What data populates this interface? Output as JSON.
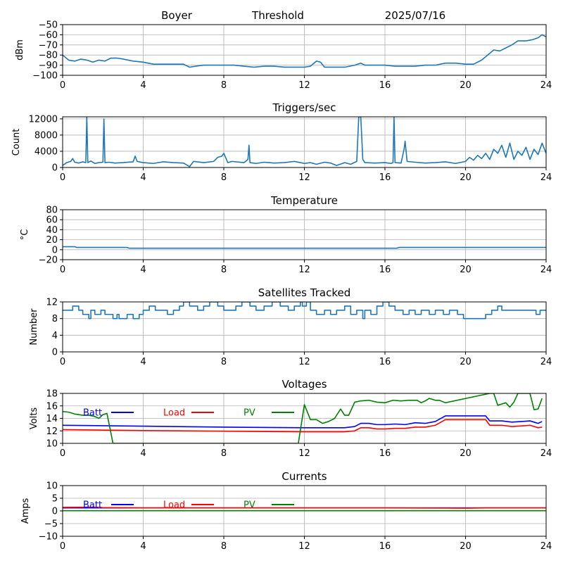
{
  "header": {
    "site": "Boyer",
    "mode": "Threshold",
    "date": "2025/07/16"
  },
  "colors": {
    "series": "#1f77b4",
    "batt": "#0000ff",
    "load": "#ff0000",
    "pv": "#008000",
    "grid": "#b0b0b0"
  },
  "chart_data": [
    {
      "id": "threshold",
      "type": "line",
      "title": "",
      "ylabel": "dBm",
      "xlim": [
        0,
        24
      ],
      "ylim": [
        -100,
        -50
      ],
      "xticks": [
        0,
        4,
        8,
        12,
        16,
        20,
        24
      ],
      "yticks": [
        -100,
        -90,
        -80,
        -70,
        -60,
        -50
      ],
      "grid": true,
      "series": [
        {
          "name": "",
          "color": "#1f77b4",
          "x": [
            0,
            0.3,
            0.6,
            0.9,
            1.2,
            1.5,
            1.8,
            2.1,
            2.4,
            2.7,
            3.0,
            3.5,
            4.0,
            4.5,
            5.0,
            5.5,
            6.0,
            6.3,
            6.6,
            7.0,
            7.5,
            8.0,
            8.5,
            9.0,
            9.5,
            10.0,
            10.5,
            11.0,
            11.5,
            12.0,
            12.3,
            12.6,
            12.8,
            13.0,
            13.5,
            14.0,
            14.5,
            14.8,
            15.0,
            15.5,
            16.0,
            16.5,
            17.0,
            17.5,
            18.0,
            18.5,
            19.0,
            19.5,
            20.0,
            20.4,
            20.8,
            21.1,
            21.4,
            21.7,
            22.0,
            22.3,
            22.6,
            23.0,
            23.3,
            23.6,
            23.8,
            24.0
          ],
          "y": [
            -80,
            -85,
            -86,
            -84,
            -85,
            -87,
            -85,
            -86,
            -83,
            -83,
            -84,
            -86,
            -87,
            -89,
            -89,
            -89,
            -89,
            -92,
            -91,
            -90,
            -90,
            -90,
            -90,
            -91,
            -92,
            -91,
            -91,
            -92,
            -92,
            -92,
            -91,
            -86,
            -87,
            -92,
            -92,
            -92,
            -90,
            -88,
            -90,
            -90,
            -90,
            -91,
            -91,
            -91,
            -90,
            -90,
            -88,
            -88,
            -89,
            -89,
            -85,
            -80,
            -75,
            -76,
            -73,
            -70,
            -66,
            -66,
            -65,
            -63,
            -60,
            -62
          ]
        }
      ]
    },
    {
      "id": "triggers",
      "type": "line",
      "title": "Triggers/sec",
      "ylabel": "Count",
      "xlim": [
        0,
        24
      ],
      "ylim": [
        0,
        12500
      ],
      "xticks": [
        0,
        4,
        8,
        12,
        16,
        20,
        24
      ],
      "yticks": [
        0,
        4000,
        8000,
        12000
      ],
      "grid": true,
      "series": [
        {
          "name": "",
          "color": "#1f77b4",
          "x": [
            0,
            0.2,
            0.4,
            0.5,
            0.6,
            0.8,
            1.0,
            1.15,
            1.2,
            1.25,
            1.4,
            1.6,
            1.8,
            2.0,
            2.05,
            2.1,
            2.3,
            2.6,
            3.0,
            3.5,
            3.6,
            3.7,
            4.0,
            4.5,
            5.0,
            5.5,
            6.0,
            6.3,
            6.5,
            7.0,
            7.5,
            7.7,
            7.9,
            8.0,
            8.2,
            8.4,
            9.0,
            9.2,
            9.25,
            9.3,
            9.6,
            10.0,
            10.5,
            11.0,
            11.5,
            11.8,
            12.0,
            12.3,
            12.6,
            13.0,
            13.3,
            13.6,
            14.0,
            14.3,
            14.6,
            14.7,
            14.75,
            14.8,
            14.9,
            15.0,
            15.5,
            16.0,
            16.3,
            16.4,
            16.45,
            16.5,
            16.8,
            16.95,
            17.0,
            17.1,
            17.5,
            18.0,
            18.5,
            19.0,
            19.5,
            20.0,
            20.2,
            20.4,
            20.6,
            20.8,
            21.0,
            21.2,
            21.4,
            21.6,
            21.8,
            22.0,
            22.2,
            22.4,
            22.6,
            22.8,
            23.0,
            23.2,
            23.4,
            23.6,
            23.8,
            24.0
          ],
          "y": [
            500,
            1200,
            1500,
            2200,
            1300,
            1100,
            1400,
            1200,
            12500,
            1200,
            1600,
            1000,
            1200,
            1300,
            12000,
            1200,
            1300,
            1100,
            1200,
            1400,
            2800,
            1500,
            1200,
            1000,
            1400,
            1200,
            1100,
            200,
            1500,
            1200,
            1500,
            2500,
            2800,
            3500,
            1200,
            1500,
            1200,
            2000,
            5500,
            1200,
            1000,
            1300,
            1100,
            1200,
            1500,
            1200,
            1000,
            1200,
            800,
            1300,
            1100,
            500,
            1200,
            800,
            1500,
            12500,
            12500,
            12500,
            2000,
            1200,
            1100,
            1200,
            1000,
            1200,
            12500,
            1200,
            1100,
            4500,
            6500,
            1500,
            1300,
            1100,
            1200,
            1400,
            1000,
            1500,
            2500,
            1800,
            3000,
            2200,
            3500,
            2000,
            4500,
            3500,
            5500,
            2500,
            6000,
            2000,
            4000,
            3000,
            5000,
            2000,
            4500,
            3200,
            6000,
            3500
          ]
        }
      ]
    },
    {
      "id": "temperature",
      "type": "line",
      "title": "Temperature",
      "ylabel": "°C",
      "xlim": [
        0,
        24
      ],
      "ylim": [
        -20,
        80
      ],
      "xticks": [
        0,
        4,
        8,
        12,
        16,
        20,
        24
      ],
      "yticks": [
        -20,
        0,
        20,
        40,
        60,
        80
      ],
      "grid": true,
      "series": [
        {
          "name": "",
          "color": "#1f77b4",
          "x": [
            0,
            0.6,
            0.7,
            3.2,
            3.3,
            16.6,
            16.7,
            24
          ],
          "y": [
            6,
            6,
            4.5,
            4.5,
            3,
            3,
            4.5,
            4.5
          ]
        }
      ]
    },
    {
      "id": "satellites",
      "type": "line",
      "title": "Satellites Tracked",
      "ylabel": "Number",
      "xlim": [
        0,
        24
      ],
      "ylim": [
        0,
        12
      ],
      "xticks": [
        0,
        4,
        8,
        12,
        16,
        20,
        24
      ],
      "yticks": [
        0,
        4,
        8,
        12
      ],
      "grid": true,
      "step": true,
      "series": [
        {
          "name": "",
          "color": "#1f77b4",
          "x": [
            0,
            0.5,
            0.8,
            1.0,
            1.3,
            1.4,
            1.6,
            1.9,
            2.1,
            2.5,
            2.7,
            2.8,
            3.2,
            3.5,
            3.8,
            4.0,
            4.3,
            4.6,
            5.2,
            5.5,
            5.8,
            6.0,
            6.3,
            6.7,
            7.0,
            7.3,
            7.7,
            8.0,
            8.6,
            8.9,
            9.3,
            9.6,
            10.0,
            10.4,
            10.8,
            11.2,
            11.5,
            11.8,
            11.9,
            12.1,
            12.3,
            12.6,
            13.0,
            13.3,
            13.6,
            14.0,
            14.3,
            14.6,
            14.9,
            15.0,
            15.3,
            15.6,
            15.9,
            16.2,
            16.5,
            16.9,
            17.2,
            17.5,
            17.8,
            18.2,
            18.5,
            18.9,
            19.2,
            19.6,
            19.9,
            20.2,
            20.6,
            21.0,
            21.3,
            21.6,
            21.8,
            22.0,
            22.5,
            23.0,
            23.5,
            23.7,
            24.0
          ],
          "y": [
            10,
            11,
            10,
            9,
            8,
            10,
            9,
            10,
            9,
            8,
            9,
            8,
            9,
            8,
            9,
            10,
            11,
            10,
            9,
            10,
            11,
            12,
            11,
            10,
            11,
            12,
            11,
            10,
            11,
            12,
            11,
            10,
            11,
            12,
            11,
            10,
            11,
            12,
            11,
            12,
            10,
            9,
            10,
            9,
            10,
            11,
            9,
            10,
            8,
            10,
            9,
            11,
            12,
            11,
            10,
            9,
            10,
            9,
            10,
            9,
            10,
            9,
            10,
            9,
            8,
            8,
            8,
            9,
            10,
            11,
            10,
            10,
            10,
            10,
            9,
            10,
            10
          ]
        }
      ]
    },
    {
      "id": "voltages",
      "type": "line",
      "title": "Voltages",
      "ylabel": "Volts",
      "xlim": [
        0,
        24
      ],
      "ylim": [
        10,
        18
      ],
      "xticks": [
        0,
        4,
        8,
        12,
        16,
        20,
        24
      ],
      "yticks": [
        10,
        12,
        14,
        16,
        18
      ],
      "grid": true,
      "legend": "top-left",
      "series": [
        {
          "name": "Batt",
          "color": "#0000ff",
          "x": [
            0,
            4,
            8,
            12,
            13,
            14,
            14.5,
            14.8,
            15.2,
            15.6,
            16,
            16.5,
            17,
            17.5,
            18,
            18.5,
            19,
            19.5,
            20,
            21,
            21.2,
            21.8,
            22.3,
            22.8,
            23.2,
            23.6,
            23.8
          ],
          "y": [
            12.9,
            12.75,
            12.6,
            12.5,
            12.5,
            12.5,
            12.7,
            13.2,
            13.2,
            13.0,
            13.0,
            13.1,
            13.0,
            13.3,
            13.2,
            13.5,
            14.4,
            14.4,
            14.4,
            14.4,
            13.6,
            13.6,
            13.4,
            13.5,
            13.6,
            13.2,
            13.5
          ]
        },
        {
          "name": "Load",
          "color": "#ff0000",
          "x": [
            0,
            4,
            8,
            12,
            13,
            14,
            14.5,
            14.8,
            15.2,
            15.6,
            16,
            16.5,
            17,
            17.5,
            18,
            18.5,
            19,
            19.5,
            20,
            21,
            21.2,
            21.8,
            22.3,
            22.8,
            23.2,
            23.6,
            23.8
          ],
          "y": [
            12.2,
            12.05,
            11.95,
            11.85,
            11.85,
            11.85,
            12.0,
            12.5,
            12.5,
            12.3,
            12.3,
            12.4,
            12.4,
            12.6,
            12.6,
            12.9,
            13.8,
            13.8,
            13.8,
            13.8,
            12.9,
            12.9,
            12.7,
            12.8,
            12.9,
            12.5,
            12.6
          ]
        },
        {
          "name": "PV",
          "color": "#008000",
          "x": [
            0,
            0.3,
            0.6,
            1.0,
            1.3,
            1.6,
            1.8,
            2.0,
            2.2,
            2.5,
            11.7,
            12.0,
            12.3,
            12.6,
            12.9,
            13.2,
            13.5,
            13.8,
            14.0,
            14.2,
            14.5,
            14.8,
            15.2,
            15.6,
            16.0,
            16.4,
            16.8,
            17.2,
            17.6,
            17.8,
            18.0,
            18.2,
            18.5,
            18.7,
            19.0,
            21.2,
            21.4,
            21.6,
            22.0,
            22.2,
            22.4,
            22.6,
            23.2,
            23.4,
            23.6,
            23.8
          ],
          "y": [
            15.1,
            15.0,
            14.7,
            14.5,
            14.5,
            14.3,
            14.0,
            14.6,
            14.8,
            10,
            10,
            16.2,
            13.8,
            13.8,
            13.2,
            13.5,
            14.0,
            15.5,
            14.5,
            14.5,
            16.6,
            16.8,
            16.9,
            16.6,
            16.5,
            16.9,
            16.8,
            16.9,
            16.9,
            16.5,
            16.8,
            17.2,
            16.9,
            16.9,
            16.5,
            18,
            18,
            16.1,
            16.5,
            15.8,
            16.6,
            18,
            18,
            15.4,
            15.5,
            17.2
          ]
        }
      ]
    },
    {
      "id": "currents",
      "type": "line",
      "title": "Currents",
      "ylabel": "Amps",
      "xlim": [
        0,
        24
      ],
      "ylim": [
        -10,
        10
      ],
      "xticks": [
        0,
        4,
        8,
        12,
        16,
        20,
        24
      ],
      "yticks": [
        -10,
        -5,
        0,
        5,
        10
      ],
      "grid": true,
      "legend": "top-left",
      "series": [
        {
          "name": "Batt",
          "color": "#0000ff",
          "x": [
            0,
            24
          ],
          "y": [
            1.2,
            1.2
          ]
        },
        {
          "name": "Load",
          "color": "#ff0000",
          "x": [
            0,
            1.5,
            2.0,
            4,
            8,
            12,
            16,
            20,
            21,
            24
          ],
          "y": [
            1.4,
            1.5,
            1.3,
            1.2,
            1.2,
            1.2,
            1.2,
            1.1,
            1.2,
            1.2
          ]
        },
        {
          "name": "PV",
          "color": "#008000",
          "x": [
            0,
            24
          ],
          "y": [
            0.1,
            0.1
          ]
        }
      ]
    }
  ]
}
